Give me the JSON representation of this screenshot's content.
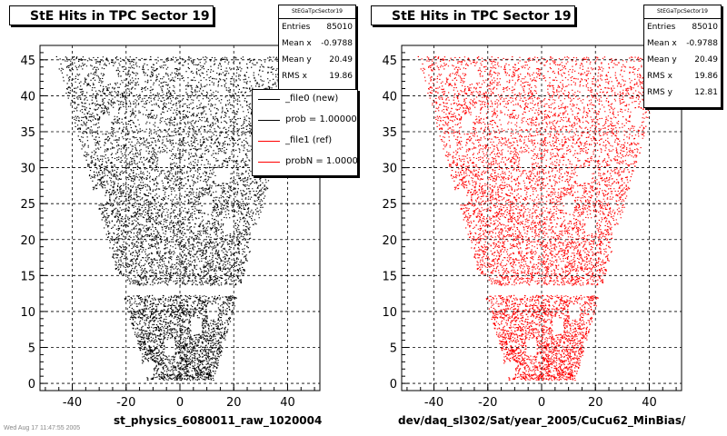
{
  "panels": [
    {
      "title": "StE Hits in TPC Sector 19",
      "stats": {
        "name": "StEGaTpcSector19",
        "entries": "85010",
        "mean_x": "-0.9788",
        "mean_y": "20.49",
        "rms_x": "19.86",
        "rms_y": "12.81"
      },
      "xtitle": "st_physics_6080011_raw_1020004",
      "color": "#000000"
    },
    {
      "title": "StE Hits in TPC Sector 19",
      "stats": {
        "name": "StEGaTpcSector19",
        "entries": "85010",
        "mean_x": "-0.9788",
        "mean_y": "20.49",
        "rms_x": "19.86",
        "rms_y": "12.81"
      },
      "xtitle": "dev/daq_sl302/Sat/year_2005/CuCu62_MinBias/",
      "color": "#ff0000"
    }
  ],
  "stats_labels": {
    "entries": "Entries",
    "mean_x": "Mean x",
    "mean_y": "Mean y",
    "rms_x": "RMS x",
    "rms_y": "RMS y"
  },
  "legend": {
    "entries": [
      {
        "label": "_file0 (new)",
        "color": "#000000"
      },
      {
        "label": "prob = 1.000000",
        "color": "#000000"
      },
      {
        "label": "_file1 (ref)",
        "color": "#ff0000"
      },
      {
        "label": "probN = 1.000000",
        "color": "#ff0000"
      }
    ]
  },
  "footer": "Wed Aug 17 11:47:55 2005",
  "chart_data": [
    {
      "type": "scatter",
      "title": "StE Hits in TPC Sector 19",
      "xlabel": "st_physics_6080011_raw_1020004",
      "ylabel": "",
      "xlim": [
        -52,
        52
      ],
      "ylim": [
        -1,
        47
      ],
      "xticks": [
        -40,
        -20,
        0,
        20,
        40
      ],
      "yticks": [
        0,
        5,
        10,
        15,
        20,
        25,
        30,
        35,
        40,
        45
      ],
      "grid": true,
      "series": [
        {
          "name": "_file0 (new)",
          "color": "#000000"
        }
      ],
      "density_profile": {
        "y_min": 0.5,
        "y_max": 45.5,
        "x_halfwidth_at_y0": 12,
        "x_halfwidth_at_y45": 46,
        "gap_y": [
          12.3,
          13.7
        ]
      }
    },
    {
      "type": "scatter",
      "title": "StE Hits in TPC Sector 19",
      "xlabel": "dev/daq_sl302/Sat/year_2005/CuCu62_MinBias/",
      "ylabel": "",
      "xlim": [
        -52,
        52
      ],
      "ylim": [
        -1,
        47
      ],
      "xticks": [
        -40,
        -20,
        0,
        20,
        40
      ],
      "yticks": [
        0,
        5,
        10,
        15,
        20,
        25,
        30,
        35,
        40,
        45
      ],
      "grid": true,
      "series": [
        {
          "name": "_file1 (ref)",
          "color": "#ff0000"
        }
      ],
      "density_profile": {
        "y_min": 0.5,
        "y_max": 45.5,
        "x_halfwidth_at_y0": 12,
        "x_halfwidth_at_y45": 46,
        "gap_y": [
          12.3,
          13.7
        ]
      }
    }
  ]
}
